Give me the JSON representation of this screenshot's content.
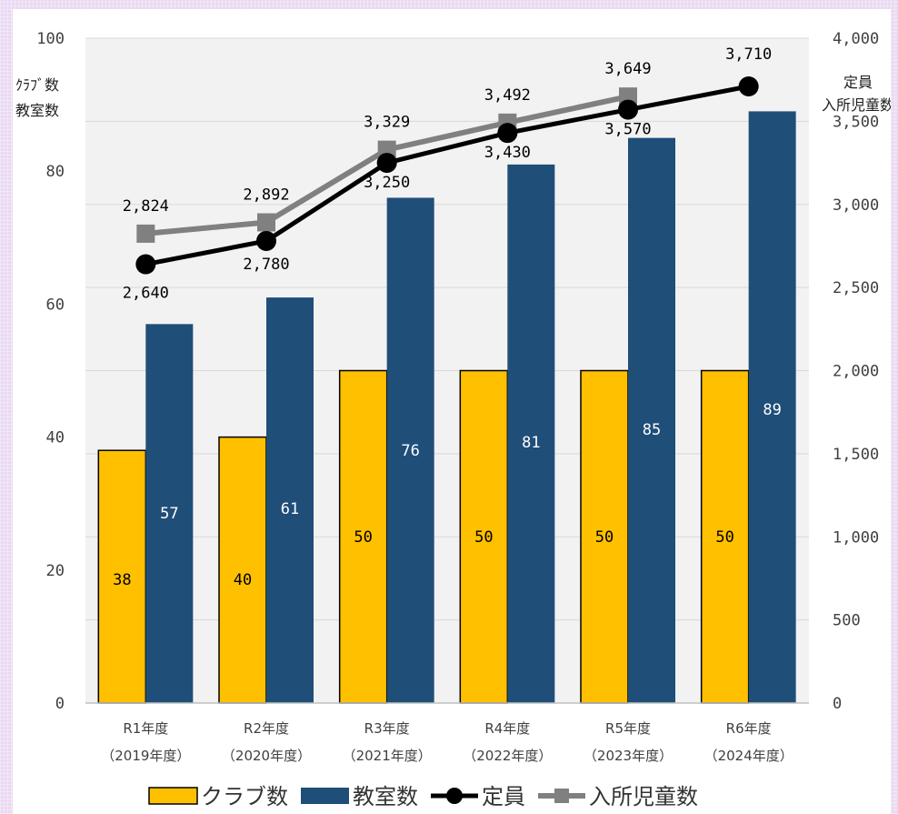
{
  "chart_data": {
    "type": "bar",
    "categories": [
      [
        "R1年度",
        "（2019年度）"
      ],
      [
        "R2年度",
        "（2020年度）"
      ],
      [
        "R3年度",
        "（2021年度）"
      ],
      [
        "R4年度",
        "（2022年度）"
      ],
      [
        "R5年度",
        "（2023年度）"
      ],
      [
        "R6年度",
        "（2024年度）"
      ]
    ],
    "y_left": {
      "label": [
        "ｸﾗﾌﾞ数",
        "教室数"
      ],
      "range": [
        0,
        100
      ],
      "ticks": [
        "0",
        "20",
        "40",
        "60",
        "80",
        "100"
      ]
    },
    "y_right": {
      "label": [
        "定員",
        "入所児童数"
      ],
      "range": [
        0,
        4000
      ],
      "ticks": [
        "0",
        "500",
        "1,000",
        "1,500",
        "2,000",
        "2,500",
        "3,000",
        "3,500",
        "4,000"
      ]
    },
    "series": [
      {
        "name": "クラブ数",
        "type": "bar",
        "axis": "left",
        "color": "#ffc000",
        "values": [
          38,
          40,
          50,
          50,
          50,
          50
        ],
        "labels": [
          "38",
          "40",
          "50",
          "50",
          "50",
          "50"
        ]
      },
      {
        "name": "教室数",
        "type": "bar",
        "axis": "left",
        "color": "#1f4e79",
        "values": [
          57,
          61,
          76,
          81,
          85,
          89
        ],
        "labels": [
          "57",
          "61",
          "76",
          "81",
          "85",
          "89"
        ]
      },
      {
        "name": "定員",
        "type": "line",
        "axis": "right",
        "color": "#000000",
        "marker": "circle",
        "values": [
          2640,
          2780,
          3250,
          3430,
          3570,
          3710
        ],
        "labels": [
          "2,640",
          "2,780",
          "3,250",
          "3,430",
          "3,570",
          "3,710"
        ]
      },
      {
        "name": "入所児童数",
        "type": "line",
        "axis": "right",
        "color": "#808080",
        "marker": "square",
        "values": [
          2824,
          2892,
          3329,
          3492,
          3649,
          null
        ],
        "labels": [
          "2,824",
          "2,892",
          "3,329",
          "3,492",
          "3,649",
          ""
        ]
      }
    ],
    "grid": true,
    "legend": "bottom"
  }
}
